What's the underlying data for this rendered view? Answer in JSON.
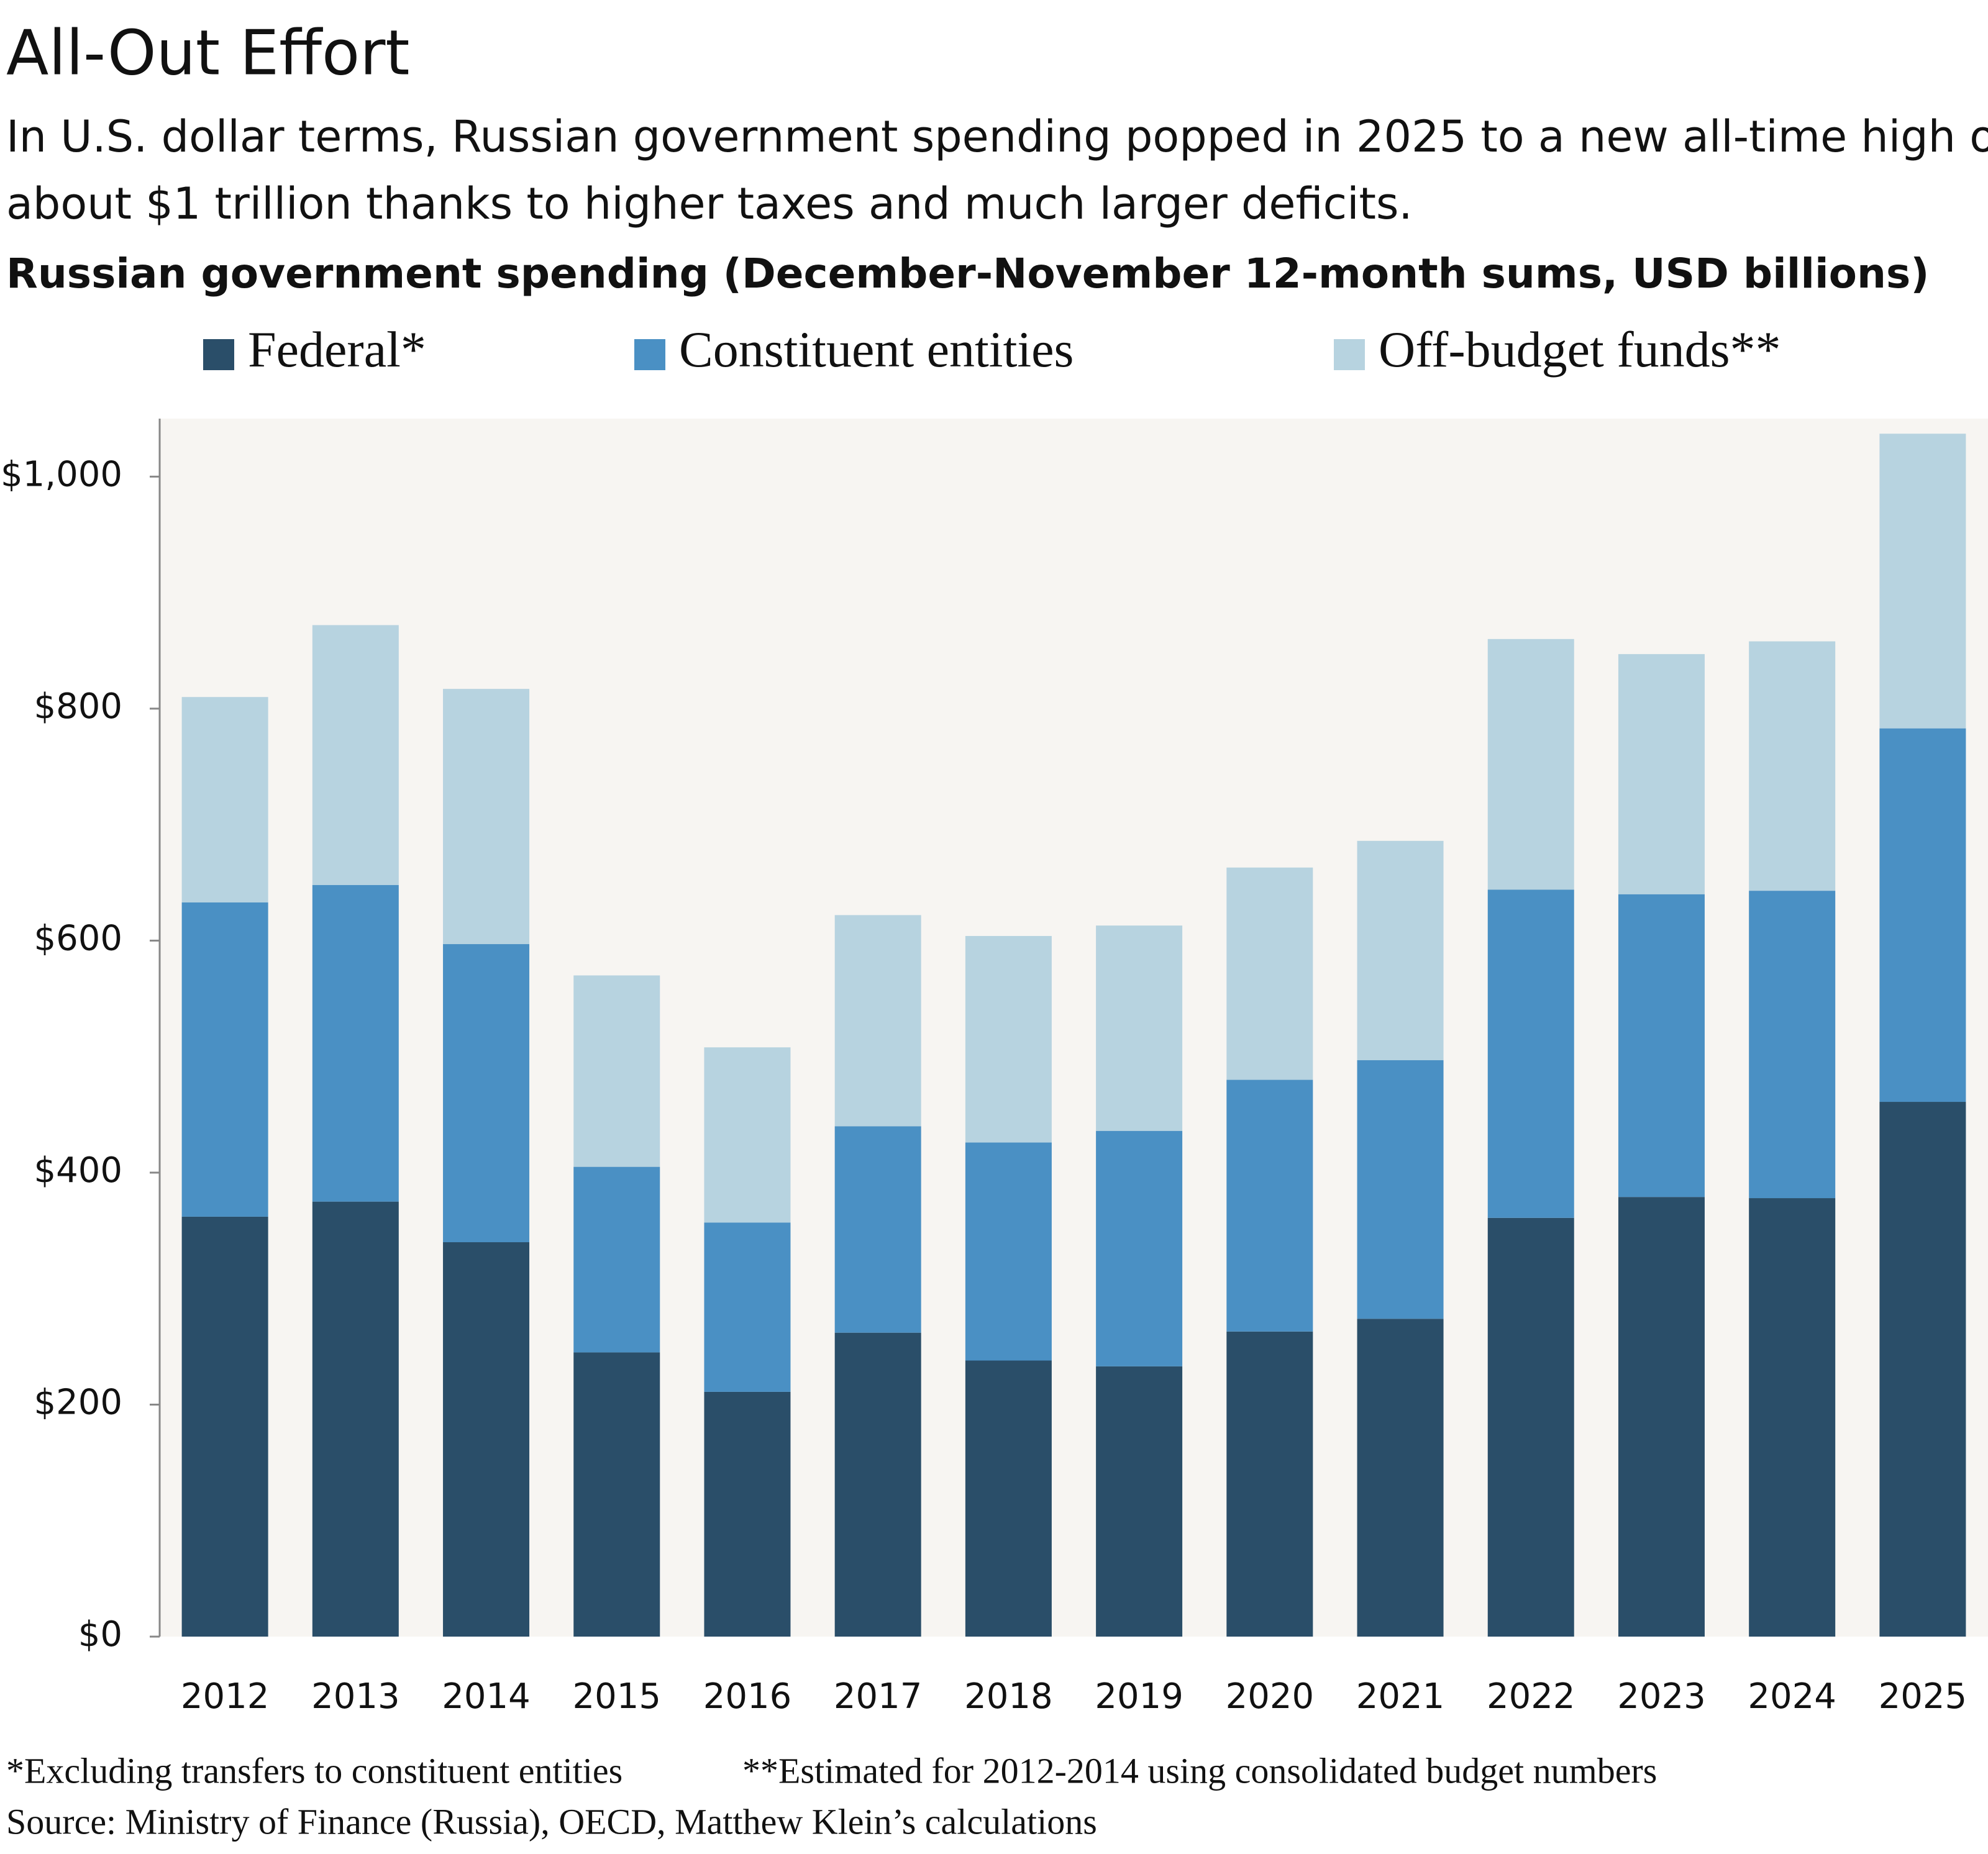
{
  "chart_data": {
    "type": "stacked_bar",
    "title": "All-Out Effort",
    "subtitle": [
      "In U.S. dollar terms, Russian government spending popped in 2025 to a new all-time high of",
      "about $1 trillion thanks to higher taxes and much larger deficits."
    ],
    "chart_title": "Russian government spending (December-November 12-month sums, USD billions)",
    "categories": [
      "2012",
      "2013",
      "2014",
      "2015",
      "2016",
      "2017",
      "2018",
      "2019",
      "2020",
      "2021",
      "2022",
      "2023",
      "2024",
      "2025"
    ],
    "series": [
      {
        "name": "Federal*",
        "color": "#2a4e69",
        "values": [
          362,
          375,
          340,
          245,
          211,
          262,
          238,
          233,
          263,
          274,
          361,
          379,
          378,
          461
        ]
      },
      {
        "name": "Constituent entities",
        "color": "#4a90c4",
        "values": [
          271,
          273,
          257,
          160,
          146,
          178,
          188,
          203,
          217,
          223,
          283,
          261,
          265,
          322
        ]
      },
      {
        "name": "Off-budget funds**",
        "color": "#b7d3e0",
        "values": [
          177,
          224,
          220,
          165,
          151,
          182,
          178,
          177,
          183,
          189,
          216,
          207,
          215,
          254
        ]
      }
    ],
    "ylim": [
      0,
      1050
    ],
    "yticks": [
      {
        "value": 0,
        "label": "$0"
      },
      {
        "value": 200,
        "label": "$200"
      },
      {
        "value": 400,
        "label": "$400"
      },
      {
        "value": 600,
        "label": "$600"
      },
      {
        "value": 800,
        "label": "$800"
      },
      {
        "value": 1000,
        "label": "$1,000"
      }
    ],
    "notes": [
      "*Excluding transfers to constituent entities",
      "**Estimated for 2012-2014 using consolidated budget numbers"
    ],
    "source": "Source: Ministry of Finance (Russia), OECD, Matthew Klein’s calculations",
    "legend": "top"
  }
}
